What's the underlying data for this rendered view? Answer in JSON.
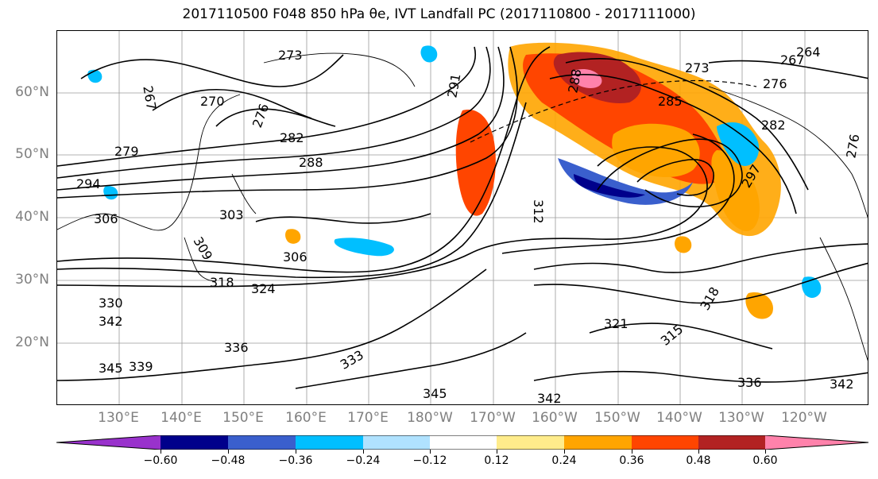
{
  "title": "2017110500 F048 850 hPa θe, IVT Landfall PC (2017110800 - 2017111000)",
  "lat_labels": [
    "60°N",
    "50°N",
    "40°N",
    "30°N",
    "20°N"
  ],
  "lon_labels": [
    "130°E",
    "140°E",
    "150°E",
    "160°E",
    "170°E",
    "180°W",
    "170°W",
    "160°W",
    "150°W",
    "140°W",
    "130°W",
    "120°W"
  ],
  "contour_labels": [
    "273",
    "267",
    "270",
    "276",
    "279",
    "282",
    "288",
    "294",
    "306",
    "303",
    "309",
    "306",
    "318",
    "324",
    "330",
    "342",
    "345",
    "339",
    "336",
    "333",
    "321",
    "318",
    "315",
    "345",
    "342",
    "336",
    "342",
    "264",
    "267",
    "276",
    "282",
    "276",
    "291",
    "288",
    "273",
    "285",
    "312",
    "297"
  ],
  "colorbar": {
    "colors": [
      "#9932CC",
      "#00008B",
      "#3A5FCD",
      "#00BFFF",
      "#B0E2FF",
      "#FFFFFF",
      "#FFEC8B",
      "#FFA500",
      "#FF4500",
      "#B22222",
      "#FF82AB"
    ],
    "tick_labels": [
      "−0.60",
      "−0.48",
      "−0.36",
      "−0.24",
      "−0.12",
      "0.12",
      "0.24",
      "0.36",
      "0.48",
      "0.60"
    ]
  }
}
